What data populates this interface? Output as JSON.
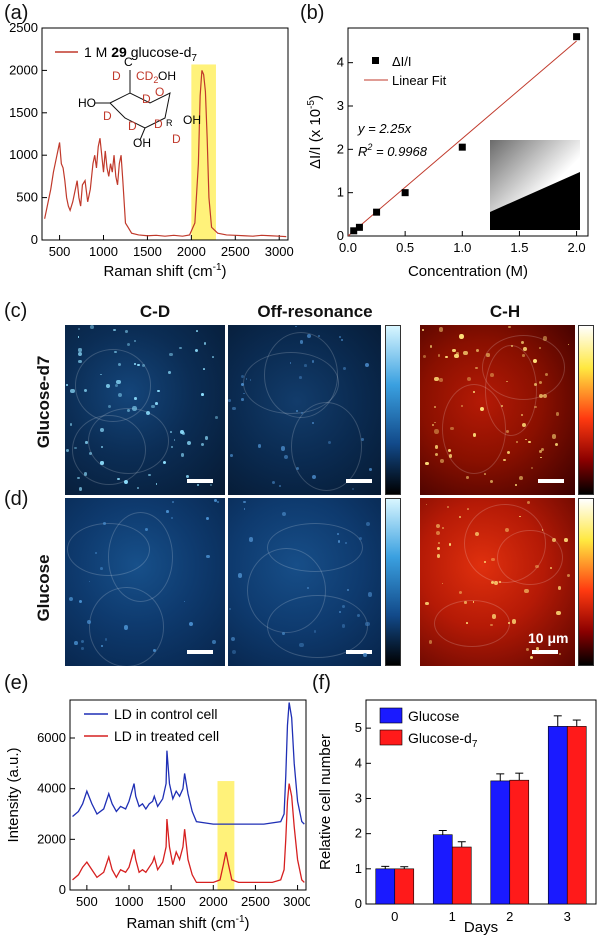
{
  "panel_labels": {
    "a": "(a)",
    "b": "(b)",
    "c": "(c)",
    "d": "(d)",
    "e": "(e)",
    "f": "(f)"
  },
  "imaging": {
    "columns": [
      "C-D",
      "Off-resonance",
      "C-H"
    ],
    "rows": [
      "Glucose-d7",
      "Glucose"
    ],
    "scale_label": "10 μm",
    "colors": {
      "blue_low": "#061a33",
      "blue_high": "#3aa0e0",
      "red_low": "#3a0000",
      "red_high": "#ff3a10"
    }
  },
  "chart_data": [
    {
      "id": "a",
      "type": "line",
      "title": "",
      "legend": [
        "1 M 29 glucose-d7"
      ],
      "legend_parts": {
        "prefix": "1 M ",
        "bold": "29",
        "name": " glucose-d",
        "sub": "7"
      },
      "xlabel": "Raman shift (cm-1)",
      "xlabel_parts": {
        "main": "Raman shift (cm",
        "sup": "-1",
        "close": ")"
      },
      "ylabel": "",
      "xlim": [
        300,
        3100
      ],
      "ylim": [
        0,
        2500
      ],
      "xticks": [
        500,
        1000,
        1500,
        2000,
        2500,
        3000
      ],
      "yticks": [
        0,
        500,
        1000,
        1500,
        2000,
        2500
      ],
      "highlight_range": [
        2000,
        2280
      ],
      "structure_labels": {
        "ch2": "CD",
        "ch2_sub": "2",
        "oh": "OH",
        "ho": "HO",
        "d": "D",
        "r": "R"
      },
      "x": [
        330,
        360,
        400,
        430,
        460,
        480,
        500,
        520,
        540,
        560,
        580,
        600,
        620,
        650,
        680,
        700,
        720,
        740,
        760,
        790,
        820,
        850,
        880,
        900,
        920,
        940,
        960,
        980,
        1000,
        1020,
        1040,
        1060,
        1080,
        1100,
        1120,
        1140,
        1160,
        1180,
        1200,
        1220,
        1250,
        1280,
        1320,
        1400,
        1500,
        1600,
        1700,
        1800,
        1900,
        1980,
        2040,
        2080,
        2100,
        2120,
        2140,
        2160,
        2180,
        2200,
        2230,
        2300,
        2400,
        2500,
        2600,
        2700,
        2800,
        2900,
        3000,
        3080
      ],
      "y": [
        250,
        400,
        600,
        800,
        950,
        1050,
        1150,
        900,
        850,
        700,
        500,
        400,
        350,
        450,
        600,
        700,
        500,
        400,
        650,
        700,
        450,
        600,
        900,
        1000,
        850,
        1100,
        1200,
        1000,
        800,
        1050,
        850,
        750,
        900,
        800,
        1000,
        750,
        650,
        900,
        1000,
        700,
        200,
        150,
        80,
        60,
        50,
        55,
        45,
        55,
        45,
        60,
        200,
        900,
        1700,
        2000,
        1950,
        1750,
        1200,
        500,
        150,
        80,
        60,
        55,
        50,
        45,
        55,
        50,
        45,
        40
      ],
      "color": "#c0392b"
    },
    {
      "id": "b",
      "type": "scatter",
      "title": "",
      "legend": [
        "ΔI/I",
        "Linear Fit"
      ],
      "xlabel": "Concentration (M)",
      "ylabel": "ΔI/I (x 10-5)",
      "ylabel_parts": {
        "main": "ΔI/I (x 10",
        "sup": "-5",
        "close": ")"
      },
      "xlim": [
        0,
        2.1
      ],
      "ylim": [
        0,
        4.8
      ],
      "xticks": [
        0.0,
        0.5,
        1.0,
        1.5,
        2.0
      ],
      "xticklabels": [
        "0.0",
        "0.5",
        "1.0",
        "1.5",
        "2.0"
      ],
      "yticks": [
        0,
        1,
        2,
        3,
        4
      ],
      "x": [
        0.05,
        0.1,
        0.25,
        0.5,
        1.0,
        2.0
      ],
      "y": [
        0.12,
        0.2,
        0.55,
        1.0,
        2.05,
        4.6
      ],
      "fit_slope": 2.25,
      "fit_equation": "y = 2.25x",
      "r2_label": "R2 = 0.9968",
      "r2_parts": {
        "main": "R",
        "sup": "2",
        "rest": " = 0.9968"
      },
      "fit_color": "#c0392b"
    },
    {
      "id": "e",
      "type": "line",
      "title": "",
      "xlabel": "Raman shift (cm-1)",
      "xlabel_parts": {
        "main": "Raman shift (cm",
        "sup": "-1",
        "close": ")"
      },
      "ylabel": "Intensity (a.u.)",
      "xlim": [
        300,
        3100
      ],
      "ylim": [
        0,
        7500
      ],
      "xticks": [
        500,
        1000,
        1500,
        2000,
        2500,
        3000
      ],
      "yticks": [
        0,
        2000,
        4000,
        6000
      ],
      "highlight_range": [
        2050,
        2250
      ],
      "series": [
        {
          "name": "LD in control cell",
          "color": "#1f2fb5",
          "x": [
            330,
            400,
            450,
            500,
            560,
            620,
            700,
            760,
            800,
            850,
            900,
            960,
            1000,
            1060,
            1080,
            1120,
            1160,
            1200,
            1240,
            1280,
            1300,
            1340,
            1400,
            1440,
            1450,
            1480,
            1520,
            1560,
            1600,
            1640,
            1660,
            1700,
            1750,
            1800,
            2000,
            2100,
            2200,
            2400,
            2600,
            2800,
            2840,
            2860,
            2880,
            2900,
            2930,
            2960,
            3000,
            3050,
            3080
          ],
          "y": [
            2900,
            3100,
            3400,
            3900,
            3400,
            3000,
            3200,
            3800,
            3400,
            3100,
            3300,
            3200,
            3500,
            4200,
            3700,
            3300,
            3400,
            3200,
            3400,
            3500,
            3700,
            3300,
            3600,
            4200,
            5500,
            4200,
            3600,
            3900,
            3700,
            4000,
            4600,
            3800,
            3100,
            2700,
            2600,
            2600,
            2600,
            2600,
            2600,
            2700,
            3000,
            4500,
            6500,
            7400,
            6800,
            5000,
            3500,
            2700,
            2600
          ]
        },
        {
          "name": "LD in treated cell",
          "color": "#d62020",
          "x": [
            330,
            400,
            450,
            500,
            560,
            620,
            700,
            760,
            800,
            850,
            900,
            960,
            1000,
            1060,
            1080,
            1120,
            1160,
            1200,
            1240,
            1280,
            1300,
            1340,
            1400,
            1440,
            1450,
            1480,
            1520,
            1560,
            1600,
            1640,
            1660,
            1700,
            1750,
            1800,
            2000,
            2080,
            2120,
            2150,
            2180,
            2220,
            2300,
            2500,
            2700,
            2800,
            2840,
            2860,
            2880,
            2900,
            2930,
            2960,
            3000,
            3050,
            3080
          ],
          "y": [
            400,
            600,
            900,
            1100,
            800,
            500,
            700,
            1300,
            800,
            500,
            800,
            700,
            900,
            1600,
            1200,
            700,
            800,
            700,
            900,
            1100,
            1300,
            800,
            1100,
            1700,
            2800,
            1700,
            1000,
            1500,
            1200,
            1700,
            2400,
            1200,
            600,
            300,
            300,
            400,
            1000,
            1500,
            1000,
            400,
            300,
            300,
            300,
            400,
            800,
            2000,
            3500,
            4200,
            3700,
            2500,
            1200,
            400,
            300
          ]
        }
      ]
    },
    {
      "id": "f",
      "type": "bar",
      "title": "",
      "xlabel": "Days",
      "ylabel": "Relative cell number",
      "categories": [
        "0",
        "1",
        "2",
        "3"
      ],
      "ylim": [
        0,
        5.8
      ],
      "yticks": [
        0,
        1,
        2,
        3,
        4,
        5
      ],
      "series": [
        {
          "name": "Glucose",
          "color": "#1a1aff",
          "values": [
            1.0,
            1.97,
            3.5,
            5.05
          ],
          "errors": [
            0.07,
            0.12,
            0.2,
            0.3
          ]
        },
        {
          "name": "Glucose-d7",
          "name_parts": {
            "main": "Glucose-d",
            "sub": "7"
          },
          "color": "#ff1a1a",
          "values": [
            1.0,
            1.62,
            3.52,
            5.05
          ],
          "errors": [
            0.06,
            0.15,
            0.2,
            0.18
          ]
        }
      ]
    }
  ]
}
